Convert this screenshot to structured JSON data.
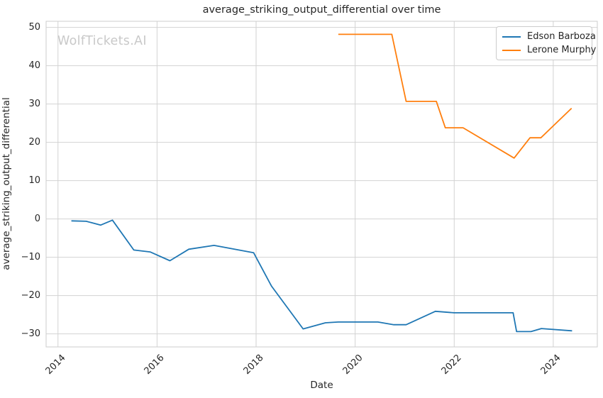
{
  "figure": {
    "background_color": "#ffffff",
    "grid_color": "#d2d2d2",
    "spine_color": "#cccccc",
    "text_color": "#262626",
    "watermark_color": "#c9c9c9"
  },
  "chart_data": {
    "type": "line",
    "title": "average_striking_output_differential over time",
    "xlabel": "Date",
    "ylabel": "average_striking_output_differential",
    "watermark": "WolfTickets.AI",
    "grid": true,
    "legend_position": "upper right",
    "x_axis": {
      "unit": "year",
      "ticks": [
        2014,
        2016,
        2018,
        2020,
        2022,
        2024
      ],
      "range": [
        2013.76,
        2024.89
      ]
    },
    "y_axis": {
      "ticks": [
        -30,
        -20,
        -10,
        0,
        10,
        20,
        30,
        40,
        50
      ],
      "range": [
        -33.4,
        51.6
      ]
    },
    "series": [
      {
        "name": "Edson Barboza",
        "color": "#1f77b4",
        "points": [
          [
            2014.27,
            -0.5
          ],
          [
            2014.57,
            -0.6
          ],
          [
            2014.86,
            -1.6
          ],
          [
            2015.1,
            -0.3
          ],
          [
            2015.53,
            -8.1
          ],
          [
            2015.86,
            -8.6
          ],
          [
            2016.26,
            -10.9
          ],
          [
            2016.64,
            -7.9
          ],
          [
            2017.15,
            -6.9
          ],
          [
            2017.95,
            -8.8
          ],
          [
            2018.31,
            -17.5
          ],
          [
            2018.95,
            -28.7
          ],
          [
            2019.4,
            -27.1
          ],
          [
            2019.66,
            -26.9
          ],
          [
            2020.46,
            -26.9
          ],
          [
            2020.78,
            -27.6
          ],
          [
            2021.03,
            -27.6
          ],
          [
            2021.62,
            -24.1
          ],
          [
            2022.0,
            -24.5
          ],
          [
            2023.19,
            -24.5
          ],
          [
            2023.26,
            -29.4
          ],
          [
            2023.55,
            -29.4
          ],
          [
            2023.76,
            -28.6
          ],
          [
            2024.38,
            -29.2
          ]
        ]
      },
      {
        "name": "Lerone Murphy",
        "color": "#ff7f0e",
        "points": [
          [
            2019.66,
            48.2
          ],
          [
            2020.74,
            48.2
          ],
          [
            2021.03,
            30.7
          ],
          [
            2021.64,
            30.7
          ],
          [
            2021.82,
            23.8
          ],
          [
            2022.18,
            23.8
          ],
          [
            2023.21,
            15.9
          ],
          [
            2023.53,
            21.2
          ],
          [
            2023.75,
            21.2
          ],
          [
            2024.37,
            28.9
          ]
        ]
      }
    ]
  }
}
